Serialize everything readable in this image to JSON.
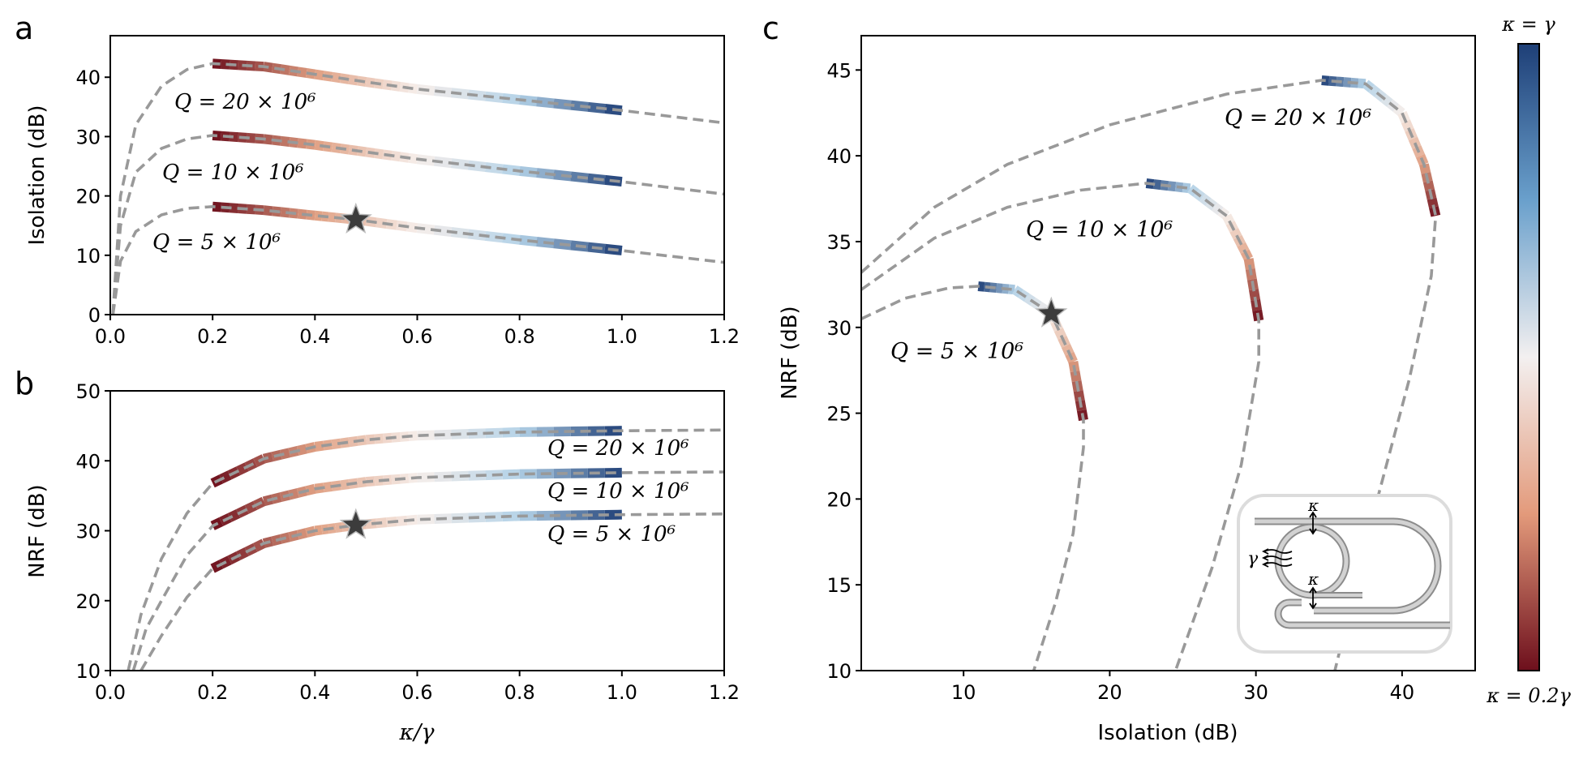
{
  "panel_labels": {
    "a": "a",
    "b": "b",
    "c": "c"
  },
  "colorbar": {
    "top_label": "κ = γ",
    "bottom_label": "κ = 0.2γ",
    "colors": [
      "#1e3f77",
      "#b5d3e8",
      "#f6eeea",
      "#e0a083",
      "#6d0f1c"
    ]
  },
  "colors": {
    "dashed": "#999999",
    "star": "#3c3c3c"
  },
  "chart_data": [
    {
      "panel": "a",
      "type": "line",
      "xlabel": "",
      "ylabel": "Isolation (dB)",
      "xlim": [
        0,
        1.2
      ],
      "ylim": [
        0,
        47
      ],
      "xticks": [
        "0.0",
        "0.2",
        "0.4",
        "0.6",
        "0.8",
        "1.0",
        "1.2"
      ],
      "yticks": [
        "0",
        "10",
        "20",
        "30",
        "40"
      ],
      "series": [
        {
          "name": "Q = 20 × 10^6",
          "label": "Q = 20 × 10⁶",
          "points": [
            [
              0.005,
              0
            ],
            [
              0.02,
              20
            ],
            [
              0.05,
              32
            ],
            [
              0.1,
              38.5
            ],
            [
              0.15,
              41.3
            ],
            [
              0.2,
              42.3
            ],
            [
              0.3,
              41.8
            ],
            [
              0.4,
              40.5
            ],
            [
              0.5,
              39.2
            ],
            [
              0.6,
              38
            ],
            [
              0.8,
              36.2
            ],
            [
              1.0,
              34.4
            ],
            [
              1.2,
              32.3
            ]
          ]
        },
        {
          "name": "Q = 10 × 10^6",
          "label": "Q = 10 × 10⁶",
          "points": [
            [
              0.005,
              0
            ],
            [
              0.02,
              15
            ],
            [
              0.05,
              24
            ],
            [
              0.1,
              28
            ],
            [
              0.15,
              29.6
            ],
            [
              0.2,
              30.2
            ],
            [
              0.3,
              29.6
            ],
            [
              0.4,
              28.6
            ],
            [
              0.5,
              27.4
            ],
            [
              0.6,
              26.2
            ],
            [
              0.8,
              24.2
            ],
            [
              1.0,
              22.4
            ],
            [
              1.2,
              20.3
            ]
          ]
        },
        {
          "name": "Q = 5 × 10^6",
          "label": "Q = 5 × 10⁶",
          "points": [
            [
              0.005,
              0
            ],
            [
              0.02,
              9
            ],
            [
              0.05,
              14
            ],
            [
              0.1,
              16.8
            ],
            [
              0.15,
              17.9
            ],
            [
              0.2,
              18.2
            ],
            [
              0.3,
              17.6
            ],
            [
              0.4,
              16.7
            ],
            [
              0.48,
              16
            ],
            [
              0.6,
              14.6
            ],
            [
              0.8,
              12.6
            ],
            [
              1.0,
              10.8
            ],
            [
              1.2,
              8.8
            ]
          ]
        }
      ],
      "star": {
        "x": 0.48,
        "y": 16
      }
    },
    {
      "panel": "b",
      "type": "line",
      "xlabel": "κ/γ",
      "ylabel": "NRF (dB)",
      "xlim": [
        0,
        1.2
      ],
      "ylim": [
        10,
        50
      ],
      "xticks": [
        "0.0",
        "0.2",
        "0.4",
        "0.6",
        "0.8",
        "1.0",
        "1.2"
      ],
      "yticks": [
        "10",
        "20",
        "30",
        "40",
        "50"
      ],
      "series": [
        {
          "name": "Q = 20 × 10^6",
          "label": "Q = 20 × 10⁶",
          "points": [
            [
              0.035,
              10
            ],
            [
              0.06,
              18
            ],
            [
              0.1,
              26
            ],
            [
              0.15,
              32.5
            ],
            [
              0.2,
              36.8
            ],
            [
              0.3,
              40.3
            ],
            [
              0.4,
              42
            ],
            [
              0.5,
              43
            ],
            [
              0.6,
              43.6
            ],
            [
              0.8,
              44.1
            ],
            [
              1.0,
              44.3
            ],
            [
              1.2,
              44.4
            ]
          ]
        },
        {
          "name": "Q = 10 × 10^6",
          "label": "Q = 10 × 10⁶",
          "points": [
            [
              0.045,
              10
            ],
            [
              0.07,
              16
            ],
            [
              0.1,
              20
            ],
            [
              0.15,
              26.5
            ],
            [
              0.2,
              30.7
            ],
            [
              0.3,
              34.2
            ],
            [
              0.4,
              36
            ],
            [
              0.5,
              37
            ],
            [
              0.6,
              37.6
            ],
            [
              0.8,
              38.1
            ],
            [
              1.0,
              38.3
            ],
            [
              1.2,
              38.4
            ]
          ]
        },
        {
          "name": "Q = 5 × 10^6",
          "label": "Q = 5 × 10⁶",
          "points": [
            [
              0.06,
              10
            ],
            [
              0.1,
              15
            ],
            [
              0.15,
              20.5
            ],
            [
              0.2,
              24.6
            ],
            [
              0.3,
              28.2
            ],
            [
              0.4,
              30
            ],
            [
              0.48,
              30.8
            ],
            [
              0.6,
              31.6
            ],
            [
              0.8,
              32.1
            ],
            [
              1.0,
              32.3
            ],
            [
              1.2,
              32.4
            ]
          ]
        }
      ],
      "star": {
        "x": 0.48,
        "y": 30.8
      }
    },
    {
      "panel": "c",
      "type": "line",
      "xlabel": "Isolation (dB)",
      "ylabel": "NRF (dB)",
      "xlim": [
        3,
        45
      ],
      "ylim": [
        10,
        47
      ],
      "xticks": [
        "10",
        "20",
        "30",
        "40"
      ],
      "yticks": [
        "10",
        "15",
        "20",
        "25",
        "30",
        "35",
        "40",
        "45"
      ],
      "series": [
        {
          "name": "Q = 20 × 10^6",
          "label": "Q = 20 × 10⁶",
          "points": [
            [
              3,
              33.2
            ],
            [
              8,
              37
            ],
            [
              13,
              39.5
            ],
            [
              20,
              41.8
            ],
            [
              28,
              43.6
            ],
            [
              34.5,
              44.4
            ],
            [
              37.5,
              44.2
            ],
            [
              40,
              42.5
            ],
            [
              41.5,
              39.5
            ],
            [
              42.3,
              36.5
            ],
            [
              42,
              33
            ],
            [
              40.5,
              27
            ],
            [
              38,
              19
            ],
            [
              35.4,
              10
            ]
          ]
        },
        {
          "name": "Q = 10 × 10^6",
          "label": "Q = 10 × 10⁶",
          "points": [
            [
              3,
              32.2
            ],
            [
              8,
              35.2
            ],
            [
              13,
              37
            ],
            [
              18,
              38
            ],
            [
              22.5,
              38.4
            ],
            [
              25.5,
              38.1
            ],
            [
              28,
              36.5
            ],
            [
              29.5,
              34
            ],
            [
              30.2,
              30.4
            ],
            [
              30.2,
              28
            ],
            [
              29,
              22
            ],
            [
              27,
              16
            ],
            [
              24.5,
              10
            ]
          ]
        },
        {
          "name": "Q = 5 × 10^6",
          "label": "Q = 5 × 10⁶",
          "points": [
            [
              3,
              30.5
            ],
            [
              6,
              31.7
            ],
            [
              9,
              32.3
            ],
            [
              11,
              32.4
            ],
            [
              13.5,
              32.2
            ],
            [
              16,
              30.8
            ],
            [
              17.5,
              28
            ],
            [
              18.2,
              24.6
            ],
            [
              18.2,
              23
            ],
            [
              17.5,
              18
            ],
            [
              16.3,
              14
            ],
            [
              14.8,
              10
            ]
          ]
        }
      ],
      "star": {
        "x": 16,
        "y": 30.8
      }
    }
  ],
  "inset": {
    "kappa_top": "κ",
    "kappa_bottom": "κ",
    "gamma": "γ"
  }
}
